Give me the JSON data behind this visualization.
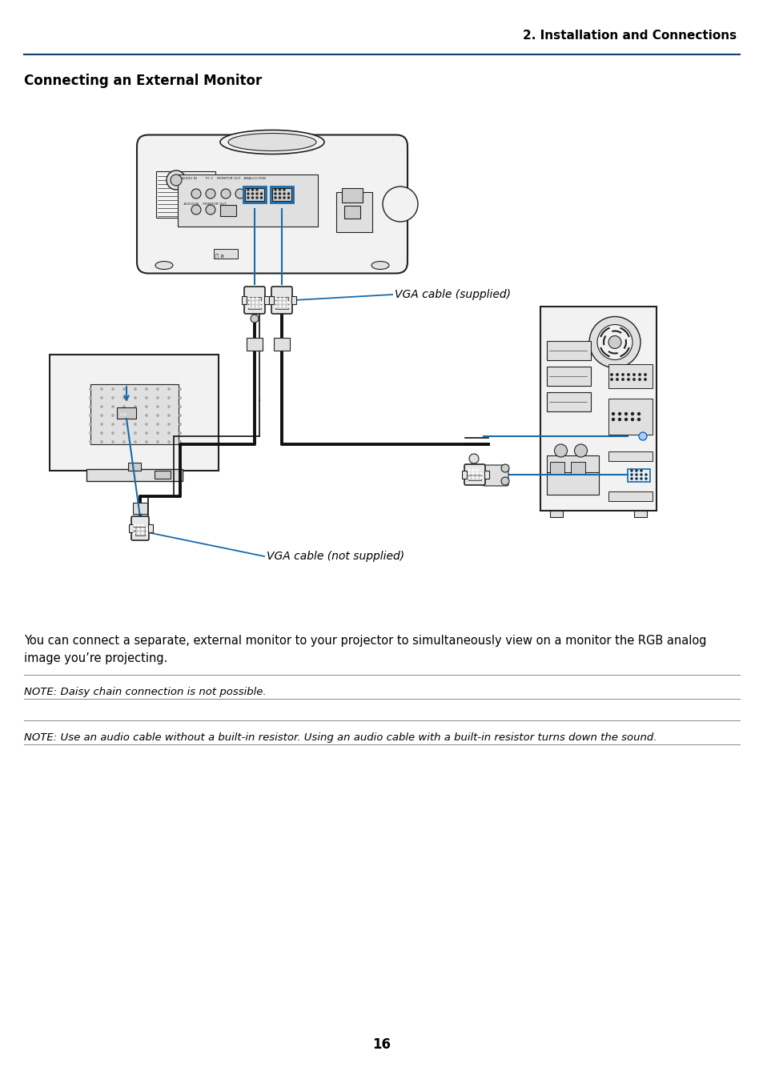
{
  "title_right": "2. Installation and Connections",
  "section_title": "Connecting an External Monitor",
  "body_text_line1": "You can connect a separate, external monitor to your projector to simultaneously view on a monitor the RGB analog",
  "body_text_line2": "image you’re projecting.",
  "note1": "NOTE: Daisy chain connection is not possible.",
  "note2": "NOTE: Use an audio cable without a built-in resistor. Using an audio cable with a built-in resistor turns down the sound.",
  "label_vga_supplied": "VGA cable (supplied)",
  "label_vga_not_supplied": "VGA cable (not supplied)",
  "page_number": "16",
  "bg_color": "#ffffff",
  "text_color": "#000000",
  "blue_color": "#1a6aaa",
  "cable_color": "#111111",
  "diagram_color": "#222222",
  "header_line_color": "#1a3a6a",
  "fill_light": "#f2f2f2",
  "fill_mid": "#e0e0e0",
  "fill_dark": "#cccccc"
}
